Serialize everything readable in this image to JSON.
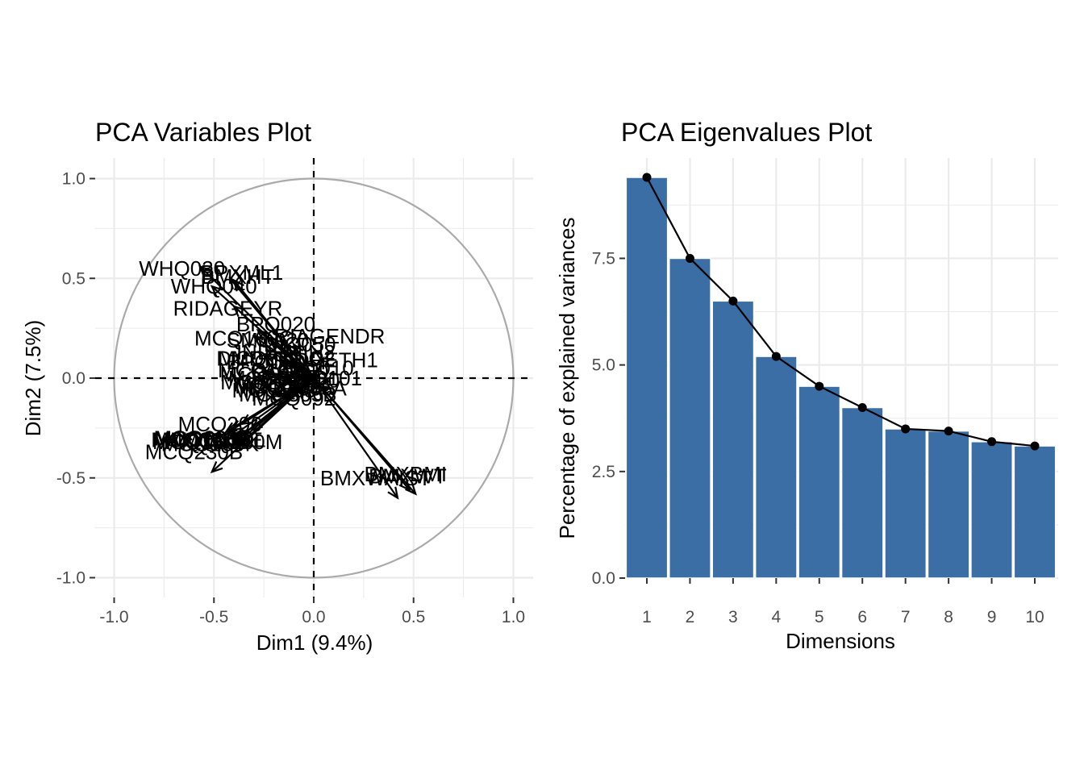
{
  "chart_data": [
    {
      "type": "scatter",
      "title": "PCA Variables Plot",
      "xlabel": "Dim1 (9.4%)",
      "ylabel": "Dim2 (7.5%)",
      "xlim": [
        -1.0,
        1.0
      ],
      "ylim": [
        -1.0,
        1.0
      ],
      "x_ticks": [
        -1.0,
        -0.5,
        0.0,
        0.5,
        1.0
      ],
      "x_tick_labels": [
        "-1.0",
        "-0.5",
        "0.0",
        "0.5",
        "1.0"
      ],
      "y_ticks": [
        -1.0,
        -0.5,
        0.0,
        0.5,
        1.0
      ],
      "y_tick_labels": [
        "-1.0",
        "-0.5",
        "0.0",
        "0.5",
        "1.0"
      ],
      "grid": true,
      "circle_color": "#aaaaaa",
      "arrow_color": "#000000",
      "variables": [
        {
          "name": "WHQ030",
          "x": -0.57,
          "y": 0.56,
          "lx": -0.66,
          "ly": 0.55
        },
        {
          "name": "BPXML1",
          "x": -0.42,
          "y": 0.5,
          "lx": -0.36,
          "ly": 0.53
        },
        {
          "name": "BMXHT",
          "x": -0.4,
          "y": 0.49,
          "lx": -0.38,
          "ly": 0.51
        },
        {
          "name": "WHQ040",
          "x": -0.51,
          "y": 0.46,
          "lx": -0.5,
          "ly": 0.46
        },
        {
          "name": "RIDAGEYR",
          "x": -0.4,
          "y": 0.36,
          "lx": -0.43,
          "ly": 0.35
        },
        {
          "name": "BPQ020",
          "x": -0.28,
          "y": 0.24,
          "lx": -0.19,
          "ly": 0.27
        },
        {
          "name": "RIAGENDR",
          "x": -0.1,
          "y": 0.17,
          "lx": 0.08,
          "ly": 0.21
        },
        {
          "name": "MCQ160C",
          "x": -0.3,
          "y": 0.21,
          "lx": -0.35,
          "ly": 0.2
        },
        {
          "name": "SMQ020",
          "x": -0.22,
          "y": 0.2,
          "lx": -0.23,
          "ly": 0.19
        },
        {
          "name": "DIQ050",
          "x": -0.14,
          "y": 0.17,
          "lx": -0.07,
          "ly": 0.17
        },
        {
          "name": "MCQ080",
          "x": -0.24,
          "y": 0.12,
          "lx": -0.27,
          "ly": 0.1
        },
        {
          "name": "INDHHIN2",
          "x": -0.05,
          "y": 0.09,
          "lx": -0.14,
          "ly": 0.13
        },
        {
          "name": "DMDEDUC2",
          "x": -0.1,
          "y": 0.08,
          "lx": -0.19,
          "ly": 0.1
        },
        {
          "name": "BPQ080",
          "x": -0.16,
          "y": 0.09,
          "lx": -0.24,
          "ly": 0.08
        },
        {
          "name": "RIDRETH1",
          "x": 0.05,
          "y": 0.1,
          "lx": 0.06,
          "ly": 0.09
        },
        {
          "name": "MCQ010",
          "x": -0.26,
          "y": 0.03,
          "lx": -0.26,
          "ly": 0.02
        },
        {
          "name": "DIQ010",
          "x": -0.12,
          "y": 0.03,
          "lx": 0.02,
          "ly": 0.05
        },
        {
          "name": "PAQ650",
          "x": 0.03,
          "y": 0.02,
          "lx": -0.12,
          "ly": 0.03
        },
        {
          "name": "MCQ300C",
          "x": -0.2,
          "y": 0.01,
          "lx": -0.18,
          "ly": 0.0
        },
        {
          "name": "ALQ101",
          "x": -0.08,
          "y": 0.0,
          "lx": 0.05,
          "ly": 0.0
        },
        {
          "name": "MCQ220",
          "x": -0.15,
          "y": -0.02,
          "lx": -0.08,
          "ly": -0.01
        },
        {
          "name": "MCQ365A",
          "x": -0.18,
          "y": -0.09,
          "lx": -0.08,
          "ly": -0.05
        },
        {
          "name": "MCQ365B",
          "x": -0.15,
          "y": -0.1,
          "lx": -0.13,
          "ly": -0.08
        },
        {
          "name": "MCQ092",
          "x": -0.12,
          "y": -0.08,
          "lx": -0.1,
          "ly": -0.1
        },
        {
          "name": "MCQ160A",
          "x": -0.08,
          "y": -0.07,
          "lx": -0.15,
          "ly": -0.04
        },
        {
          "name": "MCQ203",
          "x": -0.05,
          "y": -0.04,
          "lx": -0.2,
          "ly": -0.06
        },
        {
          "name": "MCQ160N",
          "x": -0.1,
          "y": -0.05,
          "lx": -0.22,
          "ly": -0.02
        },
        {
          "name": "MCQ300B",
          "x": -0.03,
          "y": -0.02,
          "lx": -0.16,
          "ly": -0.03
        },
        {
          "name": "MCQ160G",
          "x": -0.06,
          "y": -0.03,
          "lx": -0.23,
          "ly": 0.04
        },
        {
          "name": "BMXWAIST",
          "x": 0.42,
          "y": -0.6,
          "lx": 0.31,
          "ly": -0.5
        },
        {
          "name": "BMXBMI",
          "x": 0.51,
          "y": -0.58,
          "lx": 0.46,
          "ly": -0.48
        },
        {
          "name": "BMXWT",
          "x": 0.48,
          "y": -0.56,
          "lx": 0.47,
          "ly": -0.49
        },
        {
          "name": "MCQ160F",
          "x": -0.36,
          "y": -0.23,
          "lx": -0.56,
          "ly": -0.3
        },
        {
          "name": "MCQ160B",
          "x": -0.41,
          "y": -0.26,
          "lx": -0.57,
          "ly": -0.31
        },
        {
          "name": "MCQ160D",
          "x": -0.44,
          "y": -0.27,
          "lx": -0.56,
          "ly": -0.32
        },
        {
          "name": "MCQ160K",
          "x": -0.42,
          "y": -0.3,
          "lx": -0.52,
          "ly": -0.33
        },
        {
          "name": "MCQ160L",
          "x": -0.4,
          "y": -0.32,
          "lx": -0.48,
          "ly": -0.31
        },
        {
          "name": "MCQ160M",
          "x": -0.39,
          "y": -0.31,
          "lx": -0.41,
          "ly": -0.32
        },
        {
          "name": "MCQ160E",
          "x": -0.39,
          "y": -0.33,
          "lx": -0.5,
          "ly": -0.31
        },
        {
          "name": "MCQ220C",
          "x": -0.38,
          "y": -0.34,
          "lx": -0.55,
          "ly": -0.3
        },
        {
          "name": "MCQ206",
          "x": -0.31,
          "y": -0.26,
          "lx": -0.47,
          "ly": -0.23
        },
        {
          "name": "MCQ230B",
          "x": -0.51,
          "y": -0.47,
          "lx": -0.6,
          "ly": -0.37
        }
      ]
    },
    {
      "type": "bar",
      "title": "PCA Eigenvalues Plot",
      "xlabel": "Dimensions",
      "ylabel": "Percentage of explained variances",
      "categories": [
        "1",
        "2",
        "3",
        "4",
        "5",
        "6",
        "7",
        "8",
        "9",
        "10"
      ],
      "values": [
        9.4,
        7.5,
        6.5,
        5.2,
        4.5,
        4.0,
        3.5,
        3.45,
        3.2,
        3.1
      ],
      "ylim": [
        0,
        9.4
      ],
      "y_ticks": [
        0.0,
        2.5,
        5.0,
        7.5
      ],
      "y_tick_labels": [
        "0.0",
        "2.5",
        "5.0",
        "7.5"
      ],
      "grid": true,
      "bar_color": "#3a6ea5",
      "line_color": "#000000"
    }
  ]
}
